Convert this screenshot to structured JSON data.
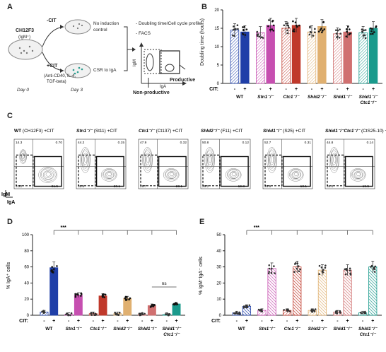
{
  "panels": {
    "a": "A",
    "b": "B",
    "c": "C",
    "d": "D",
    "e": "E"
  },
  "panelA": {
    "cell_line": "CH12F3",
    "isotype": "(IgM⁺)",
    "minus_cit": "-CIT",
    "plus_cit": "+CIT",
    "no_induction": "No induction",
    "control": "control",
    "csr": "CSR to IgA",
    "stim1": "(Anti-CD40, IL-4,",
    "stim2": "TGF-beta)",
    "day0": "Day 0",
    "day3": "Day 3",
    "readout1": "- Doubling time/Cell cycle profile",
    "readout2": "- FACS",
    "igm": "IgM",
    "iga": "IgA",
    "productive": "Productive",
    "nonproductive": "Non-productive"
  },
  "panelB": {
    "ylabel": "Doubling time (hours)",
    "yticks": [
      "0",
      "5",
      "10",
      "15",
      "20"
    ],
    "cit_label": "CIT:",
    "genotypes": [
      "WT",
      "Stn1⁻/⁻",
      "Ctc1⁻/⁻",
      "Shld2⁻/⁻",
      "Shld1⁻/⁻",
      "Shld1⁻/⁻ Ctc1⁻/⁻"
    ],
    "signs": [
      "-",
      "+"
    ]
  },
  "panelC": {
    "titles": [
      {
        "name": "WT",
        "clone": "(CH12F3) +CIT"
      },
      {
        "name": "Stn1⁻/⁻",
        "clone": "(St11) +CIT"
      },
      {
        "name": "Ctc1⁻/⁻",
        "clone": "(Ct137) +CIT"
      },
      {
        "name": "Shld2⁻/⁻",
        "clone": "(F11) +CIT"
      },
      {
        "name": "Shld1⁻/⁻",
        "clone": "(S25) +CIT"
      },
      {
        "name": "Shld1⁻/⁻Ctc1⁻/⁻",
        "clone": "(CtS25-10) +CIT"
      }
    ],
    "quadrants": [
      {
        "ul": "14.3",
        "ur": "0.70",
        "ll": "3.20",
        "lr": "81.5"
      },
      {
        "ul": "44.2",
        "ur": "0.15",
        "ll": "35.6",
        "lr": "20.1"
      },
      {
        "ul": "47.9",
        "ur": "0.32",
        "ll": "28.7",
        "lr": "23.1"
      },
      {
        "ul": "50.8",
        "ur": "0.12",
        "ll": "29.2",
        "lr": "19.8"
      },
      {
        "ul": "52.7",
        "ur": "0.31",
        "ll": "28.9",
        "lr": "18.1"
      },
      {
        "ul": "44.8",
        "ur": "0.14",
        "ll": "34.4",
        "lr": "19.5"
      }
    ],
    "igm": "IgM",
    "iga": "IgA"
  },
  "panelD": {
    "ylabel": "% IgA⁺ cells",
    "sig": "***",
    "ns": "ns",
    "yticks": [
      "0",
      "20",
      "40",
      "60",
      "80",
      "100"
    ],
    "cit_label": "CIT:",
    "genotypes": [
      "WT",
      "Stn1⁻/⁻",
      "Ctc1⁻/⁻",
      "Shld2⁻/⁻",
      "Shld1⁻/⁻",
      "Shld1⁻/⁻ Ctc1⁻/⁻"
    ],
    "signs": [
      "-",
      "+"
    ]
  },
  "panelE": {
    "ylabel": "% IgM⁻IgA⁻ cells",
    "sig": "***",
    "yticks": [
      "0",
      "10",
      "20",
      "30",
      "40",
      "50"
    ],
    "cit_label": "CIT:",
    "genotypes": [
      "WT",
      "Stn1⁻/⁻",
      "Ctc1⁻/⁻",
      "Shld2⁻/⁻",
      "Shld1⁻/⁻",
      "Shld1⁻/⁻ Ctc1⁻/⁻"
    ],
    "signs": [
      "-",
      "+"
    ]
  },
  "colors": {
    "WT": "#1f3fa8",
    "Stn1": "#c64fb0",
    "Ctc1": "#c0392b",
    "Shld2": "#e0b070",
    "Shld1": "#d07070",
    "Shld1Ctc1": "#1a9a8c"
  },
  "chart_data": [
    {
      "type": "bar",
      "ylabel": "Doubling time (hours)",
      "ylim": [
        0,
        20
      ],
      "categories": [
        "WT -",
        "WT +",
        "Stn1 -",
        "Stn1 +",
        "Ctc1 -",
        "Ctc1 +",
        "Shld2 -",
        "Shld2 +",
        "Shld1 -",
        "Shld1 +",
        "Shld1Ctc1 -",
        "Shld1Ctc1 +"
      ],
      "values": [
        14.5,
        14.0,
        13.8,
        15.8,
        15.0,
        15.8,
        14.0,
        15.5,
        13.5,
        14.0,
        13.8,
        15.0
      ]
    },
    {
      "type": "bar",
      "ylabel": "% IgA⁺ cells",
      "ylim": [
        0,
        100
      ],
      "categories": [
        "WT -",
        "WT +",
        "Stn1 -",
        "Stn1 +",
        "Ctc1 -",
        "Ctc1 +",
        "Shld2 -",
        "Shld2 +",
        "Shld1 -",
        "Shld1 +",
        "Shld1Ctc1 -",
        "Shld1Ctc1 +"
      ],
      "values": [
        4,
        59,
        1,
        25,
        2,
        24,
        2,
        21,
        1,
        12,
        1,
        14
      ]
    },
    {
      "type": "bar",
      "ylabel": "% IgM⁻IgA⁻ cells",
      "ylim": [
        0,
        50
      ],
      "categories": [
        "WT -",
        "WT +",
        "Stn1 -",
        "Stn1 +",
        "Ctc1 -",
        "Ctc1 +",
        "Shld2 -",
        "Shld2 +",
        "Shld1 -",
        "Shld1 +",
        "Shld1Ctc1 -",
        "Shld1Ctc1 +"
      ],
      "values": [
        1.5,
        5.5,
        3,
        29,
        3,
        30,
        3,
        28,
        2,
        28,
        1.5,
        30
      ]
    }
  ]
}
